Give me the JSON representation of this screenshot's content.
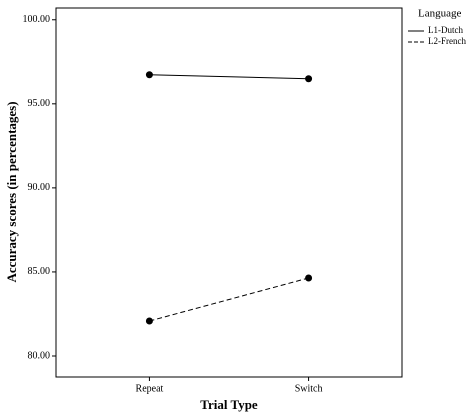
{
  "chart_data": {
    "type": "line",
    "x_label": "Trial Type",
    "y_label": "Accuracy scores (in percentages)",
    "categories": [
      "Repeat",
      "Switch"
    ],
    "series": [
      {
        "name": "L1-Dutch",
        "color": "#000000",
        "line_style": "solid",
        "values": [
          96.73,
          96.49
        ]
      },
      {
        "name": "L2-French",
        "color": "#000000",
        "line_style": "dashed",
        "values": [
          82.08,
          84.64
        ]
      }
    ],
    "ylim": [
      78.75,
      100.7
    ],
    "yticks": [
      {
        "value": 80,
        "label": "80.00"
      },
      {
        "value": 85,
        "label": "85.00"
      },
      {
        "value": 90,
        "label": "90.00"
      },
      {
        "value": 95,
        "label": "95.00"
      },
      {
        "value": 100,
        "label": "100.00"
      }
    ],
    "legend_title": "Language",
    "legend_position": "right",
    "grid": false
  }
}
